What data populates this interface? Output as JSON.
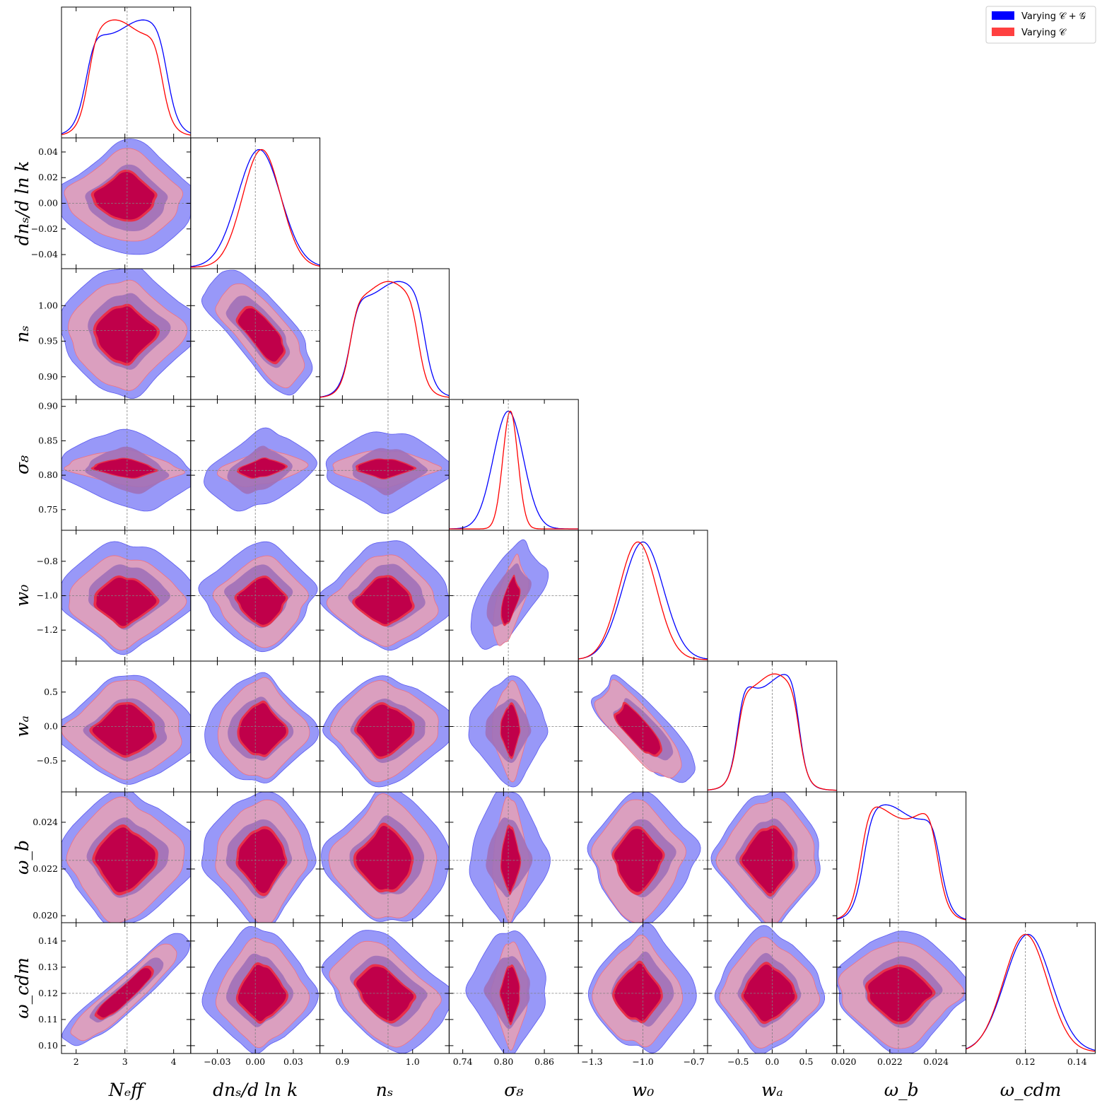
{
  "chart_data": {
    "type": "corner",
    "legend": {
      "placement": "top-right",
      "entries": [
        {
          "label": "Varying 𝒞 + 𝒢",
          "color": "#0000ff"
        },
        {
          "label": "Varying 𝒞",
          "color": "#ff4040"
        }
      ]
    },
    "series_styles": [
      {
        "name": "Varying 𝒞 + 𝒢",
        "line_color": "#0000ff",
        "fill_68": "#0000ff",
        "fill_95": "#9898f8"
      },
      {
        "name": "Varying 𝒞",
        "line_color": "#ff0000",
        "fill_68": "#c0004a",
        "fill_95": "#e6a0b5"
      }
    ],
    "parameters": [
      {
        "key": "Neff",
        "label": "N_eff",
        "xlabel": "Nₑff",
        "range": [
          1.7,
          4.35
        ],
        "fiducial": 3.046,
        "ticks": [
          2,
          3,
          4
        ],
        "tick_labels": [
          "2",
          "3",
          "4"
        ],
        "sd_blue": 0.55,
        "sd_red": 0.5,
        "mean_blue": 3.05,
        "mean_red": 3.0
      },
      {
        "key": "dnsdlnk",
        "label": "dn_s/dln k",
        "xlabel": "dnₛ/d ln k",
        "range": [
          -0.051,
          0.051
        ],
        "fiducial": 0.0,
        "ticks": [
          -0.04,
          -0.02,
          0.0,
          0.02,
          0.04
        ],
        "tick_labels": [
          "−0.04",
          "−0.02",
          "0.00",
          "0.02",
          "0.04"
        ],
        "xticks": [
          -0.03,
          0.0,
          0.03
        ],
        "xtick_labels": [
          "−0.03",
          "0.00",
          "0.03"
        ],
        "sd_blue": 0.017,
        "sd_red": 0.015,
        "mean_blue": 0.003,
        "mean_red": 0.005
      },
      {
        "key": "ns",
        "label": "n_s",
        "xlabel": "nₛ",
        "range": [
          0.868,
          1.052
        ],
        "fiducial": 0.965,
        "ticks": [
          0.9,
          0.95,
          1.0
        ],
        "tick_labels": [
          "0.90",
          "0.95",
          "1.00"
        ],
        "xticks": [
          0.9,
          1.0
        ],
        "xtick_labels": [
          "0.9",
          "1.0"
        ],
        "sd_blue": 0.035,
        "sd_red": 0.032,
        "mean_blue": 0.965,
        "mean_red": 0.96
      },
      {
        "key": "sigma8",
        "label": "sigma_8",
        "xlabel": "σ₈",
        "range": [
          0.72,
          0.91
        ],
        "fiducial": 0.807,
        "ticks": [
          0.75,
          0.8,
          0.85,
          0.9
        ],
        "tick_labels": [
          "0.75",
          "0.80",
          "0.85",
          "0.90"
        ],
        "xticks": [
          0.74,
          0.8,
          0.86
        ],
        "xtick_labels": [
          "0.74",
          "0.80",
          "0.86"
        ],
        "sd_blue": 0.022,
        "sd_red": 0.011,
        "mean_blue": 0.807,
        "mean_red": 0.81
      },
      {
        "key": "w0",
        "label": "w_0",
        "xlabel": "w₀",
        "range": [
          -1.38,
          -0.62
        ],
        "fiducial": -1.0,
        "ticks": [
          -1.2,
          -1.0,
          -0.8
        ],
        "tick_labels": [
          "−1.2",
          "−1.0",
          "−0.8"
        ],
        "xticks": [
          -1.3,
          -1.0,
          -0.7
        ],
        "xtick_labels": [
          "−1.3",
          "−1.0",
          "−0.7"
        ],
        "sd_blue": 0.12,
        "sd_red": 0.11,
        "mean_blue": -1.0,
        "mean_red": -1.03
      },
      {
        "key": "wa",
        "label": "w_a",
        "xlabel": "wₐ",
        "range": [
          -0.95,
          0.95
        ],
        "fiducial": 0.0,
        "ticks": [
          -0.5,
          0.0,
          0.5
        ],
        "tick_labels": [
          "−0.5",
          "0.0",
          "0.5"
        ],
        "sd_blue": 0.3,
        "sd_red": 0.3,
        "mean_blue": -0.05,
        "mean_red": -0.05
      },
      {
        "key": "omegab",
        "label": "omega_b",
        "xlabel": "ω_b",
        "range": [
          0.0197,
          0.0253
        ],
        "fiducial": 0.02237,
        "ticks": [
          0.02,
          0.022,
          0.024
        ],
        "tick_labels": [
          "0.020",
          "0.022",
          "0.024"
        ],
        "sd_blue": 0.0011,
        "sd_red": 0.0011,
        "mean_blue": 0.0225,
        "mean_red": 0.0224
      },
      {
        "key": "omegacdm",
        "label": "omega_cdm",
        "xlabel": "ω_cdm",
        "range": [
          0.097,
          0.147
        ],
        "fiducial": 0.12,
        "ticks": [
          0.1,
          0.11,
          0.12,
          0.13,
          0.14
        ],
        "tick_labels": [
          "0.10",
          "0.11",
          "0.12",
          "0.13",
          "0.14"
        ],
        "xticks": [
          0.12,
          0.14
        ],
        "xtick_labels": [
          "0.12",
          "0.14"
        ],
        "sd_blue": 0.009,
        "sd_red": 0.0085,
        "mean_blue": 0.121,
        "mean_red": 0.12
      }
    ],
    "correlations": {
      "Neff-omegacdm": 0.92,
      "dnsdlnk-ns": -0.7,
      "ns-omegacdm": -0.35,
      "sigma8-w0": 0.55,
      "w0-wa": -0.75,
      "dnsdlnk-sigma8": 0.3,
      "Neff-sigma8": -0.2
    },
    "ylabels": [
      "dnₛ/d ln k",
      "nₛ",
      "σ₈",
      "w₀",
      "wₐ",
      "ω_b",
      "ω_cdm"
    ]
  }
}
